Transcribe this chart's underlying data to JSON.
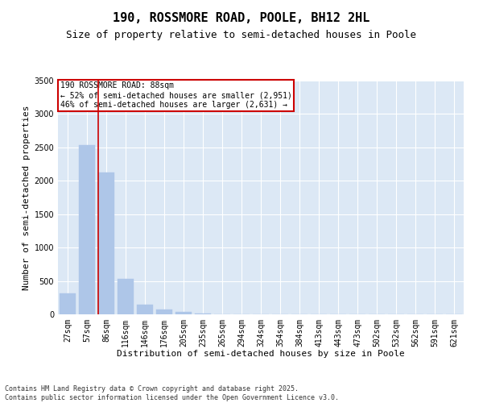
{
  "title": "190, ROSSMORE ROAD, POOLE, BH12 2HL",
  "subtitle": "Size of property relative to semi-detached houses in Poole",
  "xlabel": "Distribution of semi-detached houses by size in Poole",
  "ylabel": "Number of semi-detached properties",
  "categories": [
    "27sqm",
    "57sqm",
    "86sqm",
    "116sqm",
    "146sqm",
    "176sqm",
    "205sqm",
    "235sqm",
    "265sqm",
    "294sqm",
    "324sqm",
    "354sqm",
    "384sqm",
    "413sqm",
    "443sqm",
    "473sqm",
    "502sqm",
    "532sqm",
    "562sqm",
    "591sqm",
    "621sqm"
  ],
  "values": [
    310,
    2530,
    2125,
    530,
    150,
    70,
    40,
    10,
    0,
    0,
    0,
    0,
    0,
    0,
    0,
    0,
    0,
    0,
    0,
    0,
    0
  ],
  "bar_color": "#aec6e8",
  "bar_edge_color": "#aec6e8",
  "highlight_line_color": "#cc0000",
  "annotation_text": "190 ROSSMORE ROAD: 88sqm\n← 52% of semi-detached houses are smaller (2,951)\n46% of semi-detached houses are larger (2,631) →",
  "annotation_box_color": "#cc0000",
  "ylim": [
    0,
    3500
  ],
  "yticks": [
    0,
    500,
    1000,
    1500,
    2000,
    2500,
    3000,
    3500
  ],
  "background_color": "#dce8f5",
  "grid_color": "#ffffff",
  "fig_background": "#ffffff",
  "footer_line1": "Contains HM Land Registry data © Crown copyright and database right 2025.",
  "footer_line2": "Contains public sector information licensed under the Open Government Licence v3.0.",
  "title_fontsize": 11,
  "subtitle_fontsize": 9,
  "axis_label_fontsize": 8,
  "tick_fontsize": 7,
  "annotation_fontsize": 7,
  "footer_fontsize": 6
}
